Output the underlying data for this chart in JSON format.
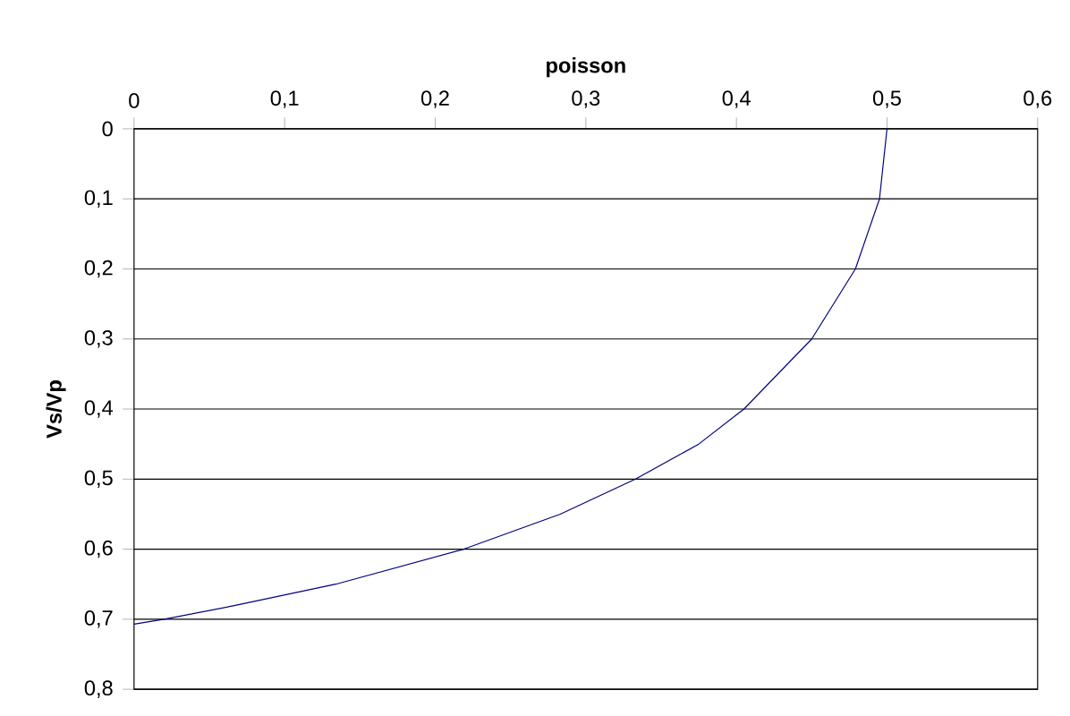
{
  "chart_data": {
    "type": "line",
    "xlabel": "poisson",
    "ylabel": "Vs/Vp",
    "x": [
      0.5,
      0.495,
      0.479,
      0.45,
      0.405,
      0.375,
      0.333,
      0.283,
      0.219,
      0.134,
      0.068,
      0.02,
      0
    ],
    "values": [
      0,
      0.1,
      0.2,
      0.3,
      0.4,
      0.45,
      0.5,
      0.55,
      0.6,
      0.65,
      0.68,
      0.7,
      0.707
    ],
    "color": "#000080",
    "xlim": [
      0,
      0.6
    ],
    "ylim": [
      0.8,
      0
    ],
    "xticks": [
      0,
      {
        "value": 0.1,
        "label": "0,1"
      },
      {
        "value": 0.2,
        "label": "0,2"
      },
      {
        "value": 0.3,
        "label": "0,3"
      },
      {
        "value": 0.4,
        "label": "0,4"
      },
      {
        "value": 0.5,
        "label": "0,5"
      },
      {
        "value": 0.6,
        "label": "0,6"
      }
    ],
    "yticks": [
      0,
      {
        "value": 0.1,
        "label": "0,1"
      },
      {
        "value": 0.2,
        "label": "0,2"
      },
      {
        "value": 0.3,
        "label": "0,3"
      },
      {
        "value": 0.4,
        "label": "0,4"
      },
      {
        "value": 0.5,
        "label": "0,5"
      },
      {
        "value": 0.6,
        "label": "0,6"
      },
      {
        "value": 0.7,
        "label": "0,7"
      },
      {
        "value": 0.8,
        "label": "0,8"
      }
    ],
    "grid": "y",
    "marker": "none",
    "line_style": "solid"
  }
}
